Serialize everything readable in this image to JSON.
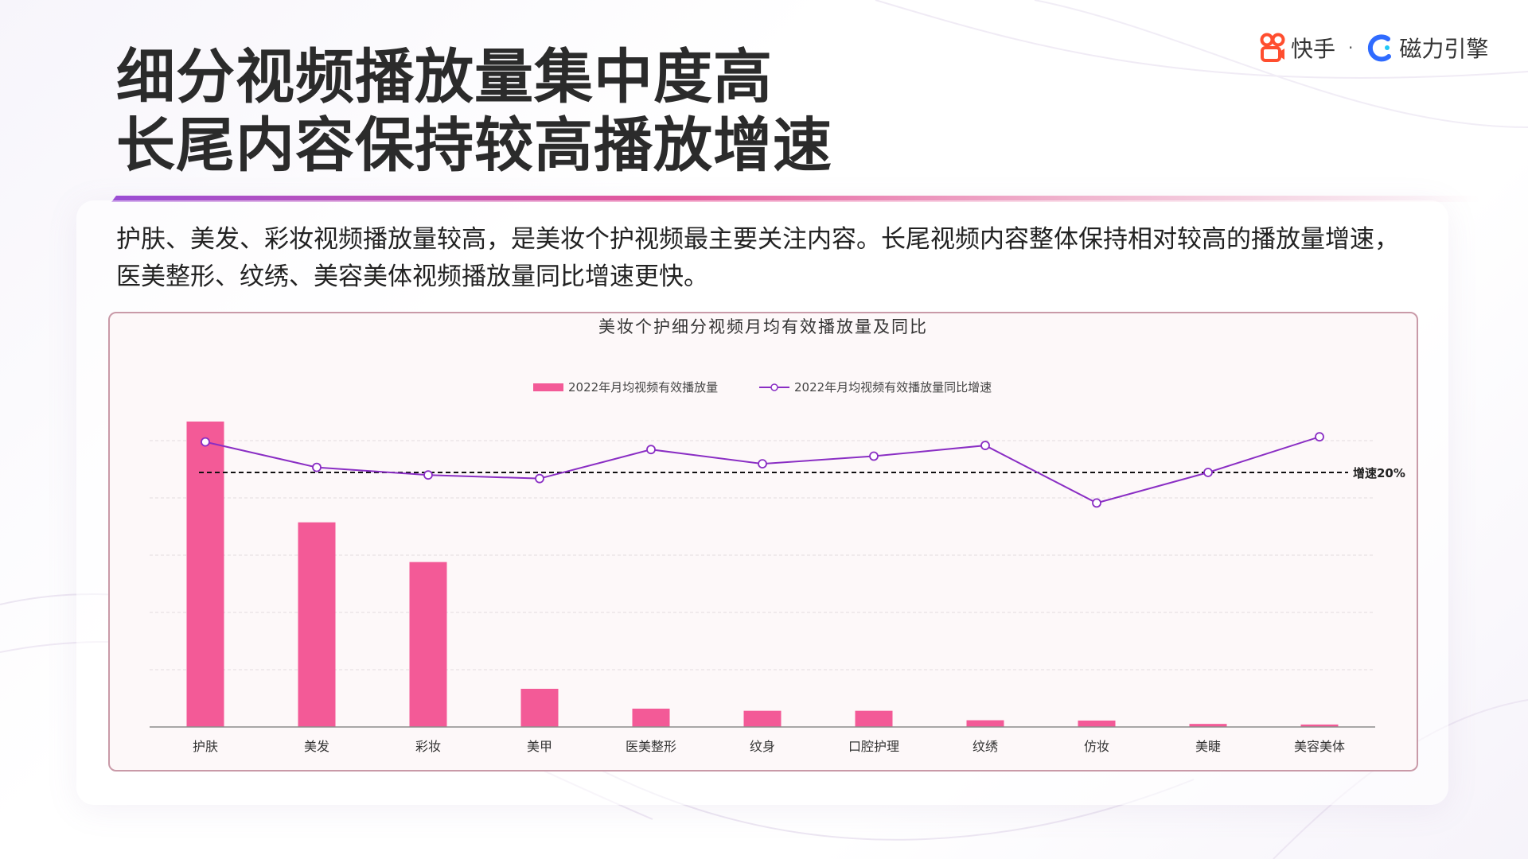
{
  "title_lines": [
    "细分视频播放量集中度高",
    "长尾内容保持较高播放增速"
  ],
  "logo": {
    "brand": "快手",
    "separator": "·",
    "product": "磁力引擎"
  },
  "description_lines": [
    "护肤、美发、彩妆视频播放量较高，是美妆个护视频最主要关注内容。长尾视频内容整体保持相对较高的播放量增速，",
    "医美整形、纹绣、美容美体视频播放量同比增速更快。"
  ],
  "colors": {
    "bar": "#f35a97",
    "line": "#8a2ec4",
    "title_bar_start": "#9b4dd6",
    "title_bar_end": "#e85a9c"
  },
  "chart_data": {
    "type": "bar",
    "title": "美妆个护细分视频月均有效播放量及同比",
    "categories": [
      "护肤",
      "美发",
      "彩妆",
      "美甲",
      "医美整形",
      "纹身",
      "口腔护理",
      "纹绣",
      "仿妆",
      "美睫",
      "美容美体"
    ],
    "series": [
      {
        "name": "2022年月均视频有效播放量",
        "kind": "bar",
        "axis": "left",
        "values": [
          100,
          67,
          54,
          12.5,
          6,
          5.3,
          5.3,
          2.2,
          2.1,
          1.0,
          0.8
        ]
      },
      {
        "name": "2022年月均视频有效播放量同比增速",
        "kind": "line",
        "axis": "right",
        "values": [
          26,
          21,
          19.5,
          18.8,
          24.5,
          21.7,
          23.2,
          25.3,
          14,
          20,
          27
        ]
      }
    ],
    "left_axis": {
      "range": [
        0,
        100
      ],
      "tick_labels_shown": false
    },
    "right_axis": {
      "range": [
        -30,
        30
      ],
      "tick_labels_shown": false
    },
    "reference_line": {
      "value": 20,
      "label": "增速20%",
      "style": "dashed"
    },
    "grid": true,
    "legend_position": "top-center"
  }
}
